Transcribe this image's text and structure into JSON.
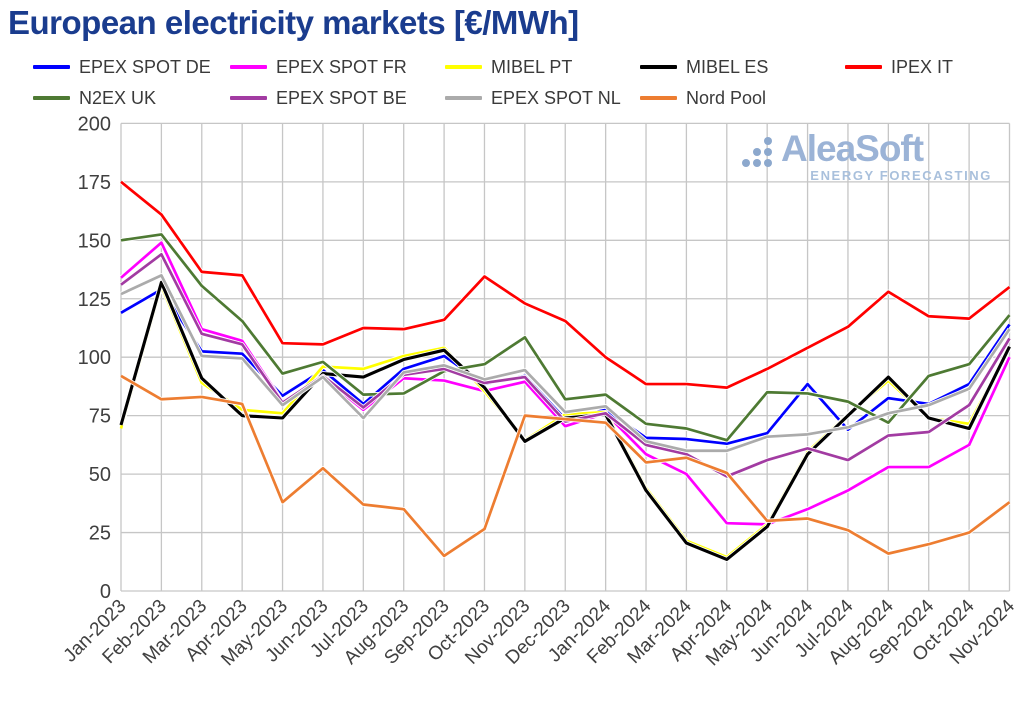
{
  "title": "European electricity markets [€/MWh]",
  "watermark": {
    "name": "AleaSoft",
    "subtitle": "ENERGY FORECASTING"
  },
  "axis_text_color": "#404040",
  "grid_color": "#c6c6c6",
  "chart_data": {
    "type": "line",
    "title": "European electricity markets [€/MWh]",
    "xlabel": "",
    "ylabel": "",
    "ylim": [
      0,
      200
    ],
    "ytick_step": 25,
    "grid": true,
    "legend_position": "top",
    "categories": [
      "Jan-2023",
      "Feb-2023",
      "Mar-2023",
      "Apr-2023",
      "May-2023",
      "Jun-2023",
      "Jul-2023",
      "Aug-2023",
      "Sep-2023",
      "Oct-2023",
      "Nov-2023",
      "Dec-2023",
      "Jan-2024",
      "Feb-2024",
      "Mar-2024",
      "Apr-2024",
      "May-2024",
      "Jun-2024",
      "Jul-2024",
      "Aug-2024",
      "Sep-2024",
      "Oct-2024",
      "Nov-2024"
    ],
    "series": [
      {
        "name": "EPEX SPOT DE",
        "color": "#0000ff",
        "values": [
          119,
          129,
          102.5,
          101.5,
          83.5,
          94.5,
          80,
          95,
          100.5,
          88.5,
          92,
          73.5,
          77.5,
          65.5,
          65,
          63,
          67.5,
          88.5,
          69,
          82.5,
          80,
          88.5,
          114
        ]
      },
      {
        "name": "EPEX SPOT FR",
        "color": "#ff00ff",
        "values": [
          134,
          149,
          112,
          107,
          81,
          91.5,
          77.5,
          91,
          90,
          85.5,
          89.5,
          70.5,
          76,
          58.5,
          50,
          29,
          28.5,
          35,
          43,
          53,
          53,
          62.5,
          100
        ]
      },
      {
        "name": "MIBEL PT",
        "color": "#ffff00",
        "values": [
          69.5,
          130.5,
          89,
          77.5,
          76,
          96,
          95,
          100.5,
          104,
          85.5,
          64.5,
          75.5,
          76.5,
          44,
          21.5,
          14.5,
          28.5,
          59.5,
          75.5,
          90,
          74,
          71.5,
          104
        ]
      },
      {
        "name": "MIBEL ES",
        "color": "#000000",
        "values": [
          71,
          132,
          91,
          75,
          74,
          93,
          91.5,
          99,
          103,
          87,
          64,
          74,
          75.5,
          43,
          20.5,
          13.5,
          27.5,
          58.5,
          75,
          91.5,
          74,
          69.5,
          104.5
        ]
      },
      {
        "name": "IPEX IT",
        "color": "#ff0000",
        "values": [
          175,
          161,
          136.5,
          135,
          106,
          105.5,
          112.5,
          112,
          116,
          134.5,
          123,
          115.5,
          100,
          88.5,
          88.5,
          87,
          95,
          104,
          113,
          128,
          117.5,
          116.5,
          130
        ]
      },
      {
        "name": "N2EX UK",
        "color": "#4e7a33",
        "values": [
          150,
          152.5,
          130.5,
          115.5,
          93,
          98,
          84,
          84.5,
          94,
          97,
          108.5,
          82,
          84,
          71.5,
          69.5,
          64.5,
          85,
          84.5,
          81,
          72,
          92,
          97,
          118
        ]
      },
      {
        "name": "EPEX SPOT BE",
        "color": "#a23ba2",
        "values": [
          131,
          144,
          110,
          105.5,
          80.5,
          92,
          78.5,
          92.5,
          95,
          89,
          91.5,
          72.5,
          76,
          62.5,
          58.5,
          49,
          56,
          61,
          56,
          66.5,
          68,
          79.5,
          108
        ]
      },
      {
        "name": "EPEX SPOT NL",
        "color": "#ababab",
        "values": [
          127,
          135,
          100.5,
          99.5,
          79.5,
          91.5,
          74,
          93.5,
          96.5,
          90.5,
          94.5,
          76.5,
          79,
          64,
          60,
          60,
          66,
          67,
          70,
          76,
          79.5,
          86.5,
          112
        ]
      },
      {
        "name": "Nord Pool",
        "color": "#ed7d31",
        "values": [
          92,
          82,
          83,
          80,
          38,
          52.5,
          37,
          35,
          15,
          26.5,
          75,
          73.5,
          72,
          55,
          57,
          50.5,
          30,
          31,
          26,
          16,
          20,
          25,
          38
        ]
      }
    ]
  }
}
